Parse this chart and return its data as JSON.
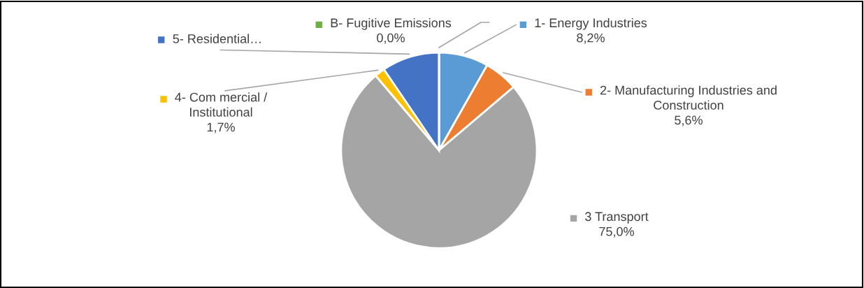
{
  "chart_data": {
    "type": "pie",
    "categories": [
      "1- Energy Industries",
      "2- Manufacturing Industries and\nConstruction",
      "3 Transport",
      "4- Com mercial /\nInstitutional",
      "5- Residential…",
      "B- Fugitive Emissions"
    ],
    "values": [
      8.2,
      5.6,
      75.0,
      1.7,
      9.5,
      0.0
    ],
    "value_labels": [
      "8,2%",
      "5,6%",
      "75,0%",
      "1,7%",
      null,
      "0,0%"
    ],
    "legend": "right",
    "colors": [
      "#5b9bd5",
      "#ed7d31",
      "#a5a5a5",
      "#ffc000",
      "#4472c4",
      "#70ad47"
    ]
  }
}
